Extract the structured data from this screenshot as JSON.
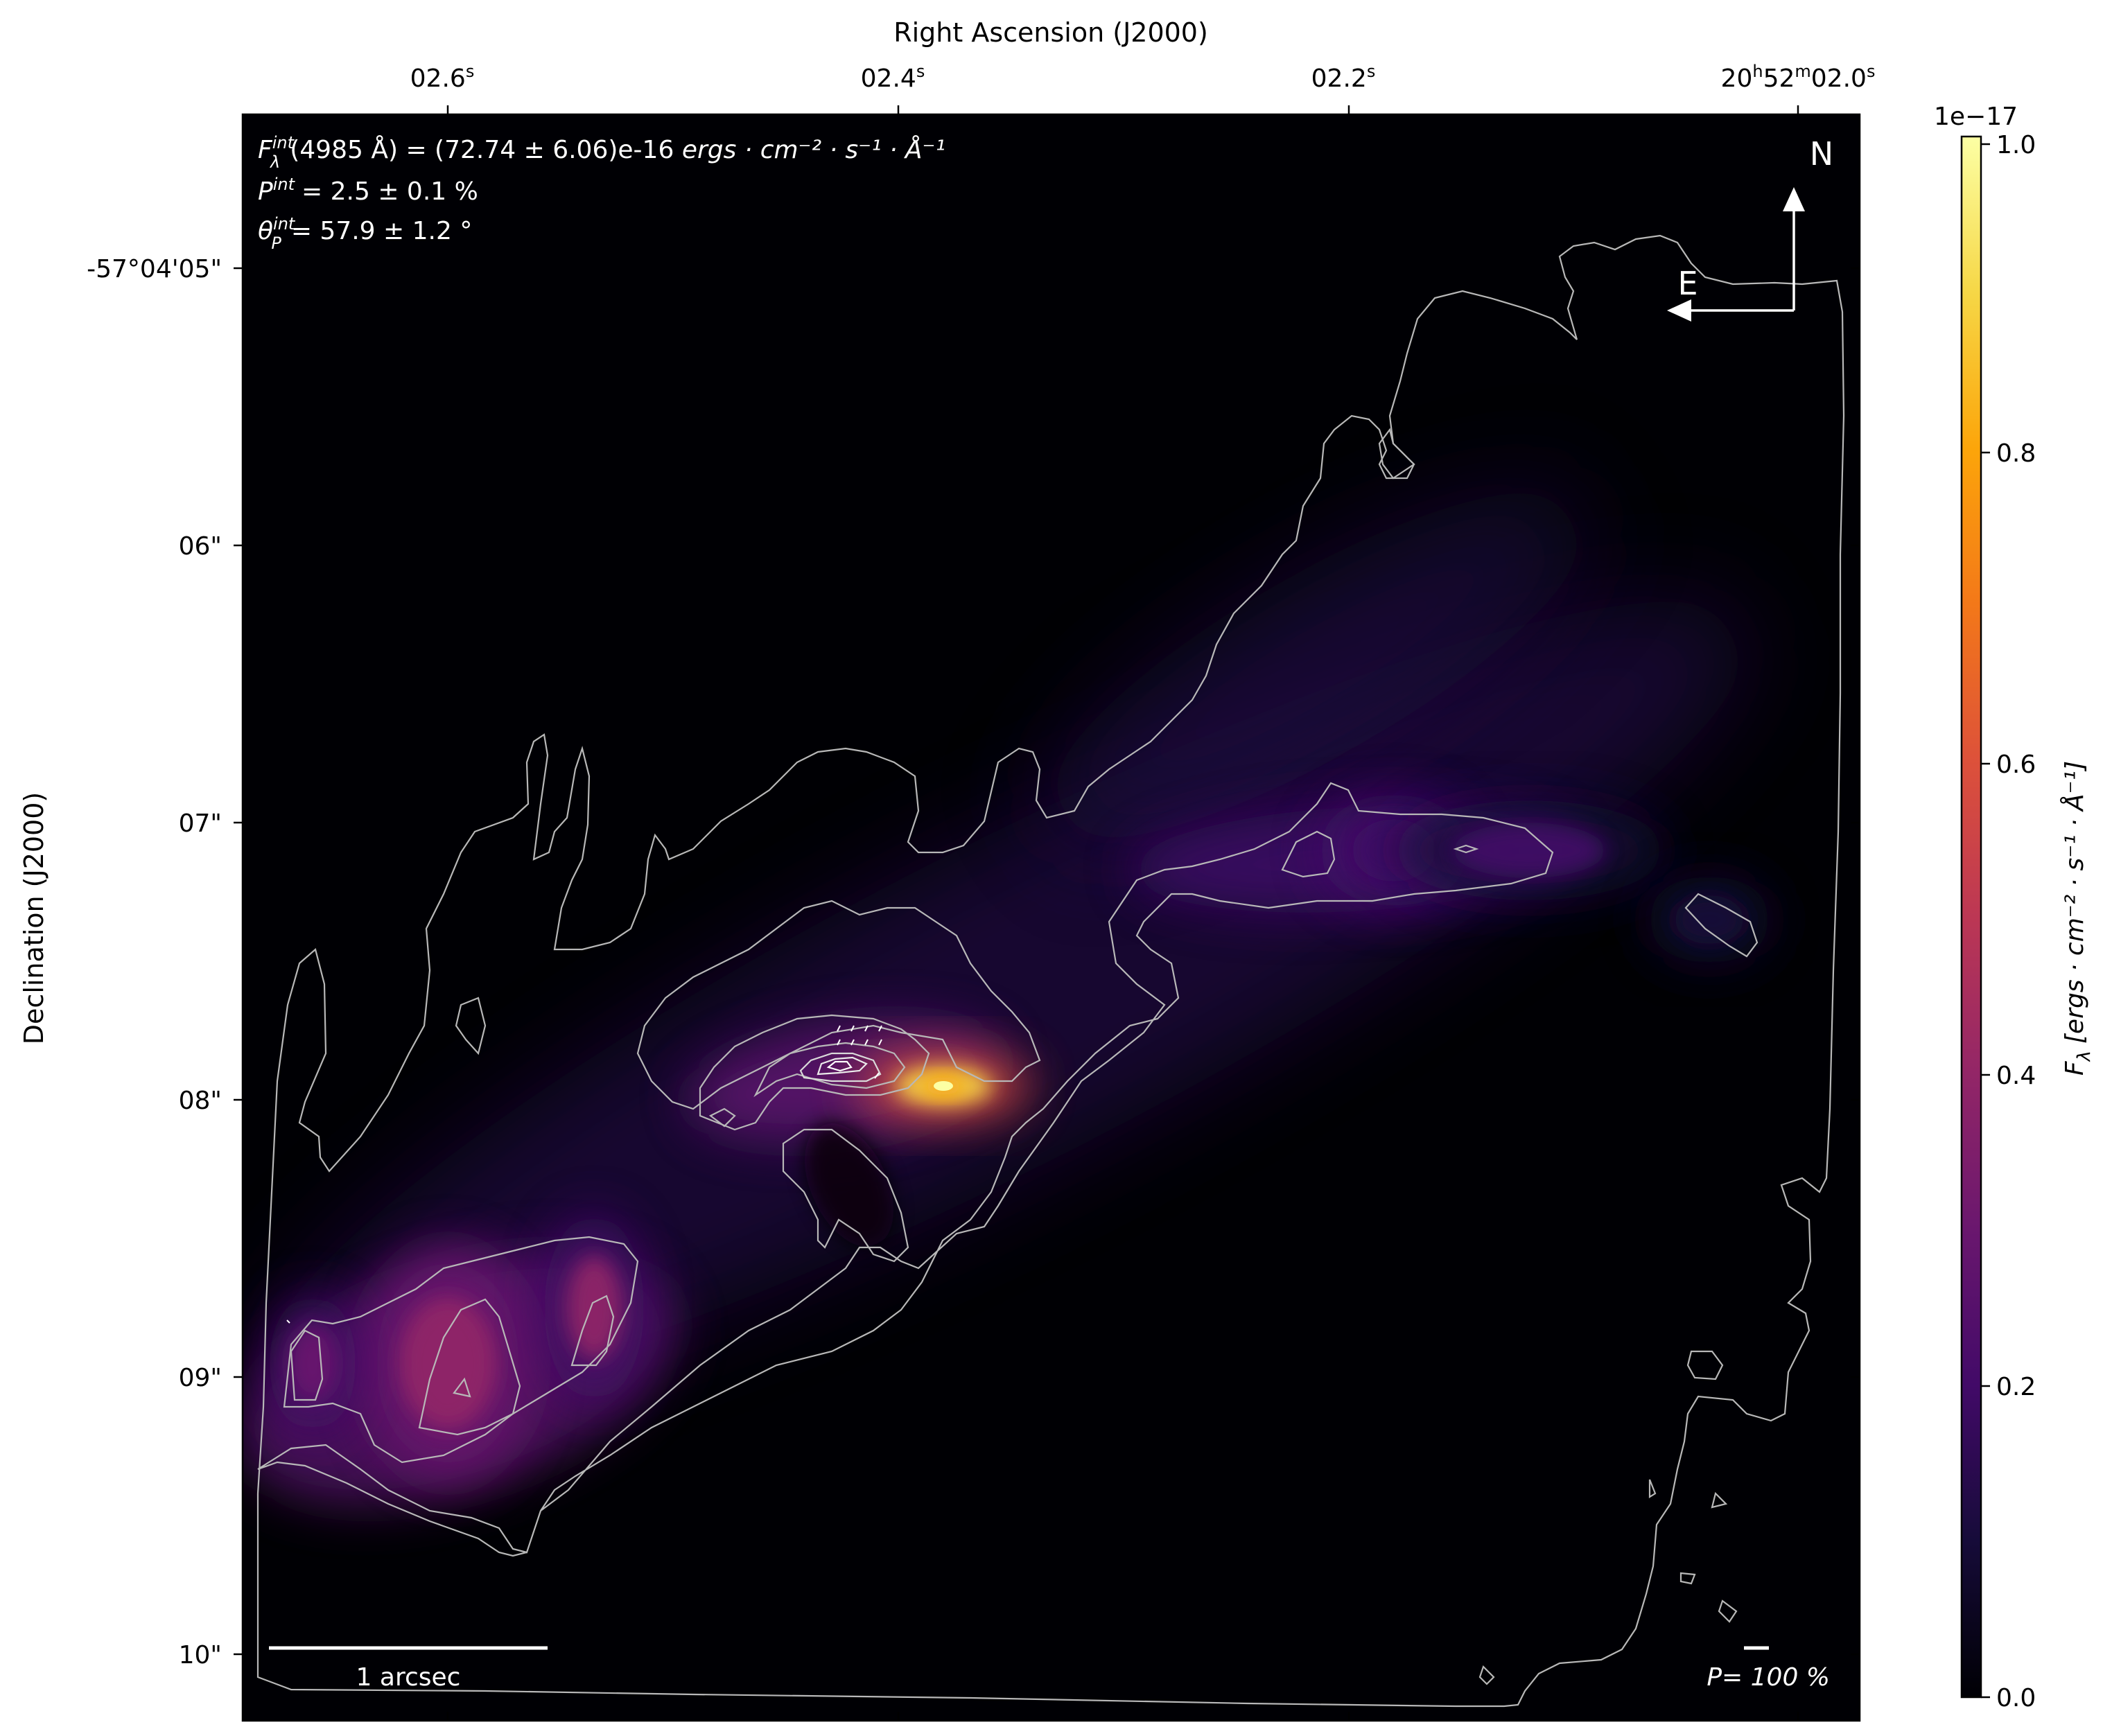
{
  "chart_data": {
    "type": "heatmap",
    "colormap": "inferno",
    "axes": {
      "top": {
        "label": "Right Ascension (J2000)",
        "ticks": [
          {
            "value": "02.6",
            "sup": "s",
            "ra_seconds": 2.6
          },
          {
            "value": "02.4",
            "sup": "s",
            "ra_seconds": 2.4
          },
          {
            "value": "02.2",
            "sup": "s",
            "ra_seconds": 2.2
          },
          {
            "value": "20h52m02.0s",
            "ra_seconds": 2.0,
            "parts": [
              "20",
              "h",
              "52",
              "m",
              "02.0",
              "s"
            ]
          }
        ]
      },
      "left": {
        "label": "Declination (J2000)",
        "ticks": [
          {
            "label": "-57°04'05\"",
            "dec_arcsec": 5
          },
          {
            "label": "06\"",
            "dec_arcsec": 6
          },
          {
            "label": "07\"",
            "dec_arcsec": 7
          },
          {
            "label": "08\"",
            "dec_arcsec": 8
          },
          {
            "label": "09\"",
            "dec_arcsec": 9
          },
          {
            "label": "10\"",
            "dec_arcsec": 10
          }
        ]
      }
    },
    "colorbar": {
      "label_main": "F",
      "label_sub": "λ",
      "label_units": "[ergs · cm⁻² · s⁻¹ · Å⁻¹]",
      "scale_text": "1e−17",
      "range": [
        0.0,
        1.0
      ],
      "ticks": [
        "0.0",
        "0.2",
        "0.4",
        "0.6",
        "0.8",
        "1.0"
      ]
    },
    "annotations": {
      "flux": {
        "sym": "F",
        "sub": "λ",
        "sup": "int",
        "text": "(4985 Å) = (72.74 ± 6.06)e-16",
        "units": "ergs · cm⁻² · s⁻¹ · Å⁻¹"
      },
      "polarization": {
        "sym": "P",
        "sup": "int",
        "text": "= 2.5 ± 0.1 %"
      },
      "angle": {
        "sym": "θ",
        "sub": "P",
        "sup": "int",
        "text": "= 57.9 ± 1.2 °"
      },
      "compass_north": "N",
      "compass_east": "E",
      "scale_bar_label": "1 arcsec",
      "pol_scale_label": "P= 100 %"
    },
    "emission_peaks": [
      {
        "name": "nucleus",
        "ra_s": 2.38,
        "dec_arcsec": 7.95,
        "flux": 1.0
      },
      {
        "name": "south-west lobe",
        "ra_s": 2.6,
        "dec_arcsec": 8.95,
        "flux": 0.5
      },
      {
        "name": "south-west knot",
        "ra_s": 2.535,
        "dec_arcsec": 8.75,
        "flux": 0.42
      },
      {
        "name": "west knot",
        "ra_s": 2.66,
        "dec_arcsec": 8.95,
        "flux": 0.3
      },
      {
        "name": "north-east knot",
        "ra_s": 2.18,
        "dec_arcsec": 7.1,
        "flux": 0.28
      },
      {
        "name": "north-east tail",
        "ra_s": 2.12,
        "dec_arcsec": 7.1,
        "flux": 0.2
      },
      {
        "name": "east blob",
        "ra_s": 2.04,
        "dec_arcsec": 7.35,
        "flux": 0.14
      }
    ]
  }
}
